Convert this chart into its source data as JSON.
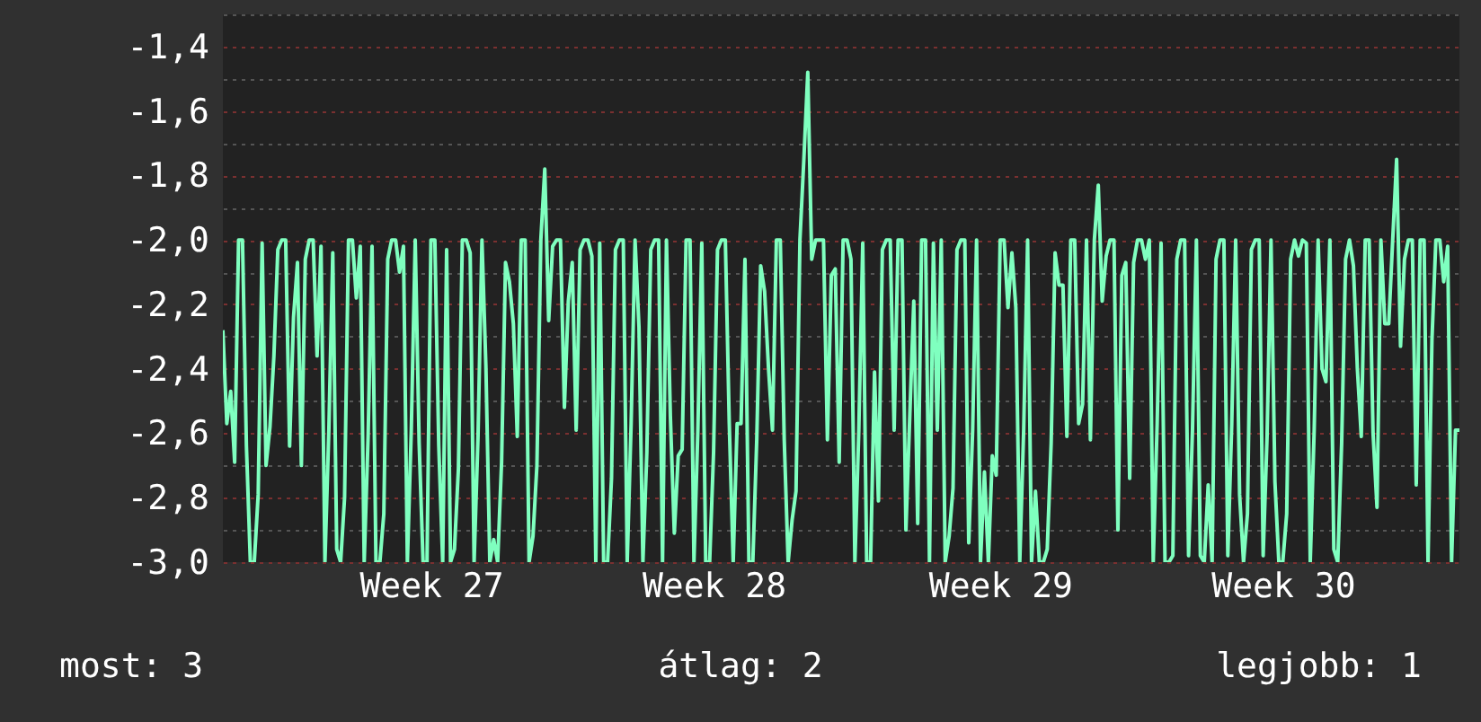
{
  "chart_data": {
    "type": "line",
    "grid": "y",
    "marker": "none",
    "line_style": "solid",
    "categories": [
      null,
      null,
      null,
      null,
      null,
      null,
      null,
      null,
      null,
      null,
      null,
      null,
      null,
      null,
      null,
      null,
      null,
      null,
      null,
      null,
      null,
      null,
      null,
      null,
      null,
      null,
      null,
      null,
      null,
      null,
      null,
      null,
      null,
      null,
      null,
      null,
      null,
      null,
      null,
      null,
      null,
      null,
      null,
      null,
      null,
      null,
      null,
      null,
      null,
      null,
      null,
      null,
      null,
      "Week 27",
      null,
      null,
      null,
      null,
      null,
      null,
      null,
      null,
      null,
      null,
      null,
      null,
      null,
      null,
      null,
      null,
      null,
      null,
      null,
      null,
      null,
      null,
      null,
      null,
      null,
      null,
      null,
      null,
      null,
      null,
      null,
      null,
      null,
      null,
      null,
      null,
      null,
      null,
      null,
      null,
      null,
      null,
      null,
      null,
      null,
      null,
      null,
      null,
      null,
      null,
      null,
      null,
      null,
      null,
      null,
      null,
      null,
      null,
      null,
      null,
      null,
      null,
      null,
      null,
      null,
      null,
      null,
      null,
      null,
      null,
      null,
      "Week 28",
      null,
      null,
      null,
      null,
      null,
      null,
      null,
      null,
      null,
      null,
      null,
      null,
      null,
      null,
      null,
      null,
      null,
      null,
      null,
      null,
      null,
      null,
      null,
      null,
      null,
      null,
      null,
      null,
      null,
      null,
      null,
      null,
      null,
      null,
      null,
      null,
      null,
      null,
      null,
      null,
      null,
      null,
      null,
      null,
      null,
      null,
      null,
      null,
      null,
      null,
      null,
      null,
      null,
      null,
      null,
      null,
      null,
      null,
      null,
      null,
      null,
      null,
      null,
      null,
      null,
      null,
      null,
      null,
      null,
      null,
      null,
      null,
      "Week 29",
      null,
      null,
      null,
      null,
      null,
      null,
      null,
      null,
      null,
      null,
      null,
      null,
      null,
      null,
      null,
      null,
      null,
      null,
      null,
      null,
      null,
      null,
      null,
      null,
      null,
      null,
      null,
      null,
      null,
      null,
      null,
      null,
      null,
      null,
      null,
      null,
      null,
      null,
      null,
      null,
      null,
      null,
      null,
      null,
      null,
      null,
      null,
      null,
      null,
      null,
      null,
      null,
      null,
      null,
      null,
      null,
      null,
      null,
      null,
      null,
      null,
      null,
      null,
      null,
      null,
      null,
      null,
      null,
      null,
      null,
      null,
      "Week 30",
      null,
      null,
      null,
      null,
      null,
      null,
      null,
      null,
      null,
      null,
      null,
      null,
      null,
      null,
      null,
      null,
      null,
      null,
      null,
      null,
      null,
      null,
      null,
      null,
      null,
      null,
      null,
      null,
      null,
      null,
      null,
      null,
      null,
      null,
      null,
      null,
      null,
      null,
      null,
      null,
      null,
      null,
      null,
      null,
      null
    ],
    "ylim": [
      -3.0,
      -1.3
    ],
    "yticks": [
      {
        "value": -3.0,
        "label": "-3,0"
      },
      {
        "value": -2.9,
        "label": null
      },
      {
        "value": -2.8,
        "label": "-2,8"
      },
      {
        "value": -2.7,
        "label": null
      },
      {
        "value": -2.6,
        "label": "-2,6"
      },
      {
        "value": -2.5,
        "label": null
      },
      {
        "value": -2.4,
        "label": "-2,4"
      },
      {
        "value": -2.3,
        "label": null
      },
      {
        "value": -2.2,
        "label": "-2,2"
      },
      {
        "value": -2.1,
        "label": null
      },
      {
        "value": -2.0,
        "label": "-2,0"
      },
      {
        "value": -1.9,
        "label": null
      },
      {
        "value": -1.8,
        "label": "-1,8"
      },
      {
        "value": -1.7,
        "label": null
      },
      {
        "value": -1.6,
        "label": "-1,6"
      },
      {
        "value": -1.5,
        "label": null
      },
      {
        "value": -1.4,
        "label": "-1,4"
      },
      {
        "value": -1.3,
        "label": null
      }
    ],
    "annotations": [
      "most: 3",
      "átlag: 2",
      "legjobb: 1"
    ],
    "series": [
      {
        "color": "#7fffbf",
        "values": [
          -2.28,
          -2.57,
          -2.47,
          -2.69,
          -2.0,
          -2.0,
          -2.64,
          -3.0,
          -3.0,
          -2.79,
          -2.01,
          -2.7,
          -2.58,
          -2.36,
          -2.03,
          -2.0,
          -2.0,
          -2.64,
          -2.24,
          -2.07,
          -2.7,
          -2.06,
          -2.0,
          -2.0,
          -2.36,
          -2.02,
          -3.0,
          -2.59,
          -2.04,
          -2.96,
          -3.0,
          -2.8,
          -2.0,
          -2.0,
          -2.18,
          -2.02,
          -3.0,
          -2.61,
          -2.02,
          -3.0,
          -3.0,
          -2.85,
          -2.06,
          -2.0,
          -2.0,
          -2.1,
          -2.02,
          -3.0,
          -2.59,
          -2.0,
          -2.63,
          -3.0,
          -3.0,
          -2.0,
          -2.0,
          -2.64,
          -3.0,
          -2.03,
          -3.0,
          -2.96,
          -2.71,
          -2.0,
          -2.0,
          -2.04,
          -3.0,
          -2.61,
          -2.0,
          -2.39,
          -3.0,
          -2.93,
          -3.0,
          -2.69,
          -2.07,
          -2.13,
          -2.26,
          -2.61,
          -2.0,
          -2.0,
          -3.0,
          -2.92,
          -2.7,
          -2.0,
          -1.78,
          -2.25,
          -2.02,
          -2.0,
          -2.0,
          -2.52,
          -2.19,
          -2.07,
          -2.59,
          -2.03,
          -2.0,
          -2.0,
          -2.05,
          -3.0,
          -2.01,
          -3.0,
          -3.0,
          -2.74,
          -2.03,
          -2.0,
          -2.0,
          -3.0,
          -2.57,
          -2.0,
          -2.27,
          -3.0,
          -2.66,
          -2.03,
          -2.0,
          -2.0,
          -3.0,
          -2.0,
          -2.55,
          -2.91,
          -2.67,
          -2.65,
          -2.0,
          -2.0,
          -3.0,
          -2.59,
          -2.01,
          -3.0,
          -3.0,
          -2.66,
          -2.03,
          -2.0,
          -2.0,
          -2.57,
          -3.0,
          -2.57,
          -2.57,
          -2.06,
          -3.0,
          -3.0,
          -2.62,
          -2.08,
          -2.16,
          -2.4,
          -2.59,
          -2.0,
          -2.0,
          -2.62,
          -3.0,
          -2.87,
          -2.78,
          -2.0,
          -1.75,
          -1.48,
          -2.06,
          -2.0,
          -2.0,
          -2.0,
          -2.62,
          -2.11,
          -2.09,
          -2.69,
          -2.0,
          -2.0,
          -2.06,
          -3.0,
          -2.59,
          -2.01,
          -3.0,
          -3.0,
          -2.41,
          -2.81,
          -2.03,
          -2.0,
          -2.0,
          -2.59,
          -2.0,
          -2.0,
          -2.9,
          -2.54,
          -2.19,
          -2.88,
          -2.0,
          -2.0,
          -3.0,
          -2.01,
          -2.59,
          -2.0,
          -3.0,
          -2.92,
          -2.77,
          -2.03,
          -2.0,
          -2.0,
          -2.94,
          -2.59,
          -2.0,
          -3.0,
          -2.72,
          -3.0,
          -2.67,
          -2.73,
          -2.0,
          -2.0,
          -2.21,
          -2.04,
          -2.21,
          -3.0,
          -2.59,
          -2.0,
          -3.0,
          -2.78,
          -3.0,
          -3.0,
          -2.96,
          -2.63,
          -2.04,
          -2.14,
          -2.14,
          -2.61,
          -2.0,
          -2.0,
          -2.57,
          -2.51,
          -2.0,
          -2.62,
          -2.0,
          -1.83,
          -2.19,
          -2.05,
          -2.0,
          -2.0,
          -2.9,
          -2.11,
          -2.07,
          -2.74,
          -2.07,
          -2.0,
          -2.0,
          -2.06,
          -2.0,
          -3.0,
          -2.57,
          -2.01,
          -3.0,
          -3.0,
          -2.98,
          -2.06,
          -2.0,
          -2.0,
          -2.98,
          -2.59,
          -2.0,
          -2.98,
          -3.0,
          -2.76,
          -3.0,
          -2.06,
          -2.0,
          -2.0,
          -2.98,
          -2.57,
          -2.0,
          -2.79,
          -3.0,
          -2.85,
          -2.03,
          -2.0,
          -2.0,
          -2.98,
          -2.61,
          -2.0,
          -2.75,
          -3.0,
          -3.0,
          -2.85,
          -2.06,
          -2.0,
          -2.05,
          -2.0,
          -2.01,
          -3.0,
          -2.59,
          -2.0,
          -2.4,
          -2.44,
          -2.0,
          -2.96,
          -3.0,
          -2.63,
          -2.06,
          -2.0,
          -2.08,
          -2.4,
          -2.61,
          -2.0,
          -2.0,
          -2.6,
          -2.83,
          -2.0,
          -2.26,
          -2.26,
          -2.0,
          -1.75,
          -2.33,
          -2.06,
          -2.0,
          -2.0,
          -2.76,
          -2.0,
          -2.0,
          -3.0,
          -2.31,
          -2.0,
          -2.0,
          -2.13,
          -2.02,
          -3.0,
          -2.59,
          -2.59
        ]
      }
    ]
  }
}
